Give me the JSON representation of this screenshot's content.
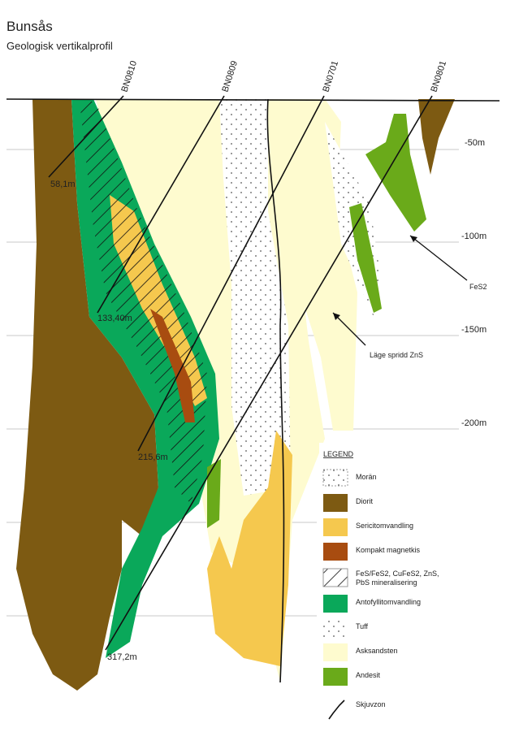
{
  "header": {
    "title": "Bunsås",
    "subtitle": "Geologisk vertikalprofil"
  },
  "depth_labels": [
    "-50m",
    "-100m",
    "-150m",
    "-200m"
  ],
  "drillholes": [
    {
      "name": "BN0810",
      "depth": "58,1m"
    },
    {
      "name": "BN0809",
      "depth": "133,40m"
    },
    {
      "name": "BN0701",
      "depth": "215,6m"
    },
    {
      "name": "BN0801",
      "depth": "317,2m"
    }
  ],
  "annotations": [
    "FeS2",
    "Läge spridd ZnS"
  ],
  "legend": {
    "title": "LEGEND",
    "items": [
      "Morän",
      "Diorit",
      "Sericitomvandling",
      "Kompakt magnetkis",
      "FeS/FeS2, CuFeS2, ZnS, PbS mineralisering",
      "Antofyllitomvandling",
      "Tuff",
      "Asksandsten",
      "Andesit",
      "Skjuvzon"
    ]
  }
}
